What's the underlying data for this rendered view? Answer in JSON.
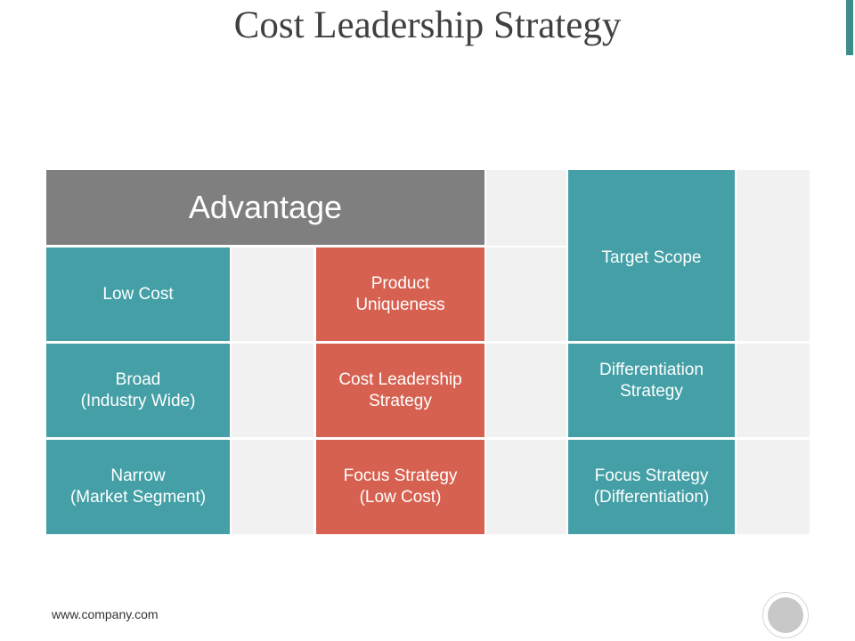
{
  "title": "Cost Leadership Strategy",
  "header": {
    "advantage": "Advantage",
    "target_scope": "Target Scope"
  },
  "rows": {
    "low_cost": "Low Cost",
    "product_uniqueness": [
      "Product",
      "Uniqueness"
    ],
    "broad": [
      "Broad",
      "(Industry Wide)"
    ],
    "cost_leadership": [
      "Cost Leadership",
      "Strategy"
    ],
    "differentiation": [
      "Differentiation",
      "Strategy"
    ],
    "narrow": [
      "Narrow",
      "(Market Segment)"
    ],
    "focus_low_cost": [
      "Focus Strategy",
      "(Low Cost)"
    ],
    "focus_differentiation": [
      "Focus Strategy",
      "(Differentiation)"
    ]
  },
  "footer": {
    "url": "www.company.com"
  },
  "colors": {
    "teal": "#44a0a6",
    "red": "#d76150",
    "header_gray": "#7f7f7f",
    "light_gray": "#f1f1f1",
    "accent": "#3e8c8c"
  }
}
